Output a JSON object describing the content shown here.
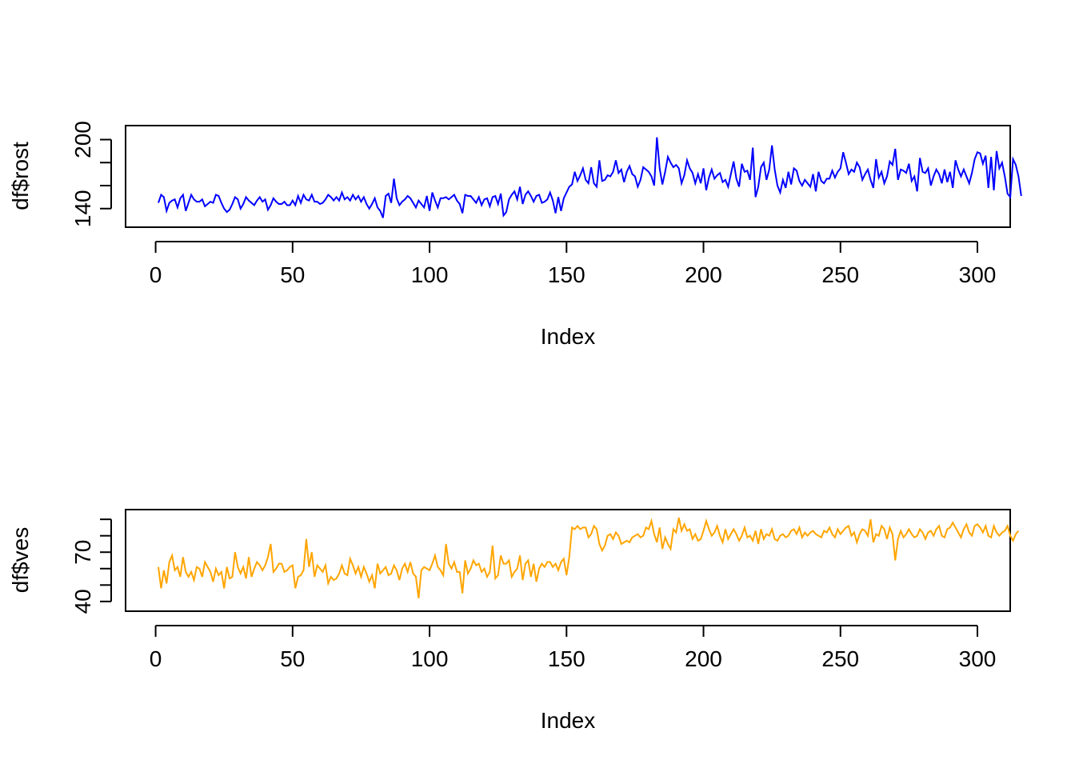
{
  "chart_data": [
    {
      "type": "line",
      "title": "",
      "xlabel": "Index",
      "ylabel": "df$rost",
      "color": "#0000FF",
      "xlim": [
        1,
        300
      ],
      "ylim": [
        128,
        208
      ],
      "x_ticks": [
        0,
        50,
        100,
        150,
        200,
        250,
        300
      ],
      "x_tick_labels": [
        "0",
        "50",
        "100",
        "150",
        "200",
        "250",
        "300"
      ],
      "y_ticks": [
        140,
        160,
        180,
        200
      ],
      "y_tick_labels": [
        "140",
        "",
        "",
        "200"
      ],
      "grid": false,
      "x": "1..300",
      "values": [
        145,
        152,
        150,
        138,
        145,
        147,
        148,
        141,
        149,
        152,
        138,
        145,
        152,
        148,
        146,
        146,
        148,
        142,
        144,
        146,
        145,
        152,
        151,
        145,
        140,
        137,
        139,
        144,
        150,
        148,
        140,
        144,
        150,
        147,
        145,
        143,
        147,
        150,
        146,
        148,
        139,
        143,
        149,
        146,
        144,
        144,
        146,
        143,
        143,
        147,
        143,
        151,
        145,
        152,
        148,
        147,
        152,
        146,
        146,
        144,
        145,
        148,
        152,
        150,
        147,
        150,
        147,
        154,
        148,
        150,
        147,
        152,
        148,
        151,
        146,
        150,
        144,
        140,
        144,
        149,
        141,
        138,
        132,
        151,
        153,
        145,
        166,
        149,
        143,
        146,
        148,
        151,
        149,
        145,
        141,
        147,
        144,
        141,
        151,
        138,
        154,
        147,
        141,
        149,
        149,
        150,
        148,
        150,
        152,
        147,
        144,
        136,
        152,
        151,
        151,
        148,
        145,
        150,
        143,
        148,
        149,
        142,
        150,
        151,
        144,
        153,
        134,
        137,
        148,
        152,
        155,
        148,
        159,
        144,
        152,
        155,
        151,
        146,
        151,
        152,
        145,
        146,
        148,
        154,
        147,
        136,
        150,
        138,
        149,
        154,
        159,
        161,
        172,
        164,
        169,
        175,
        165,
        162,
        176,
        162,
        159,
        182,
        164,
        165,
        169,
        168,
        172,
        182,
        171,
        174,
        163,
        172,
        177,
        170,
        168,
        159,
        165,
        176,
        174,
        172,
        168,
        160,
        202,
        175,
        161,
        172,
        185,
        180,
        176,
        178,
        175,
        162,
        169,
        182,
        175,
        171,
        162,
        170,
        162,
        175,
        156,
        167,
        174,
        166,
        169,
        171,
        163,
        165,
        159,
        170,
        181,
        166,
        159,
        179,
        172,
        173,
        165,
        193,
        150,
        159,
        176,
        180,
        165,
        174,
        195,
        174,
        160,
        154,
        165,
        158,
        172,
        161,
        175,
        173,
        164,
        160,
        165,
        162,
        159,
        170,
        155,
        172,
        164,
        162,
        166,
        166,
        173,
        167,
        172,
        175,
        189,
        180,
        170,
        174,
        172,
        180,
        176,
        165,
        170,
        174,
        165,
        158,
        183,
        167,
        172,
        162,
        168,
        181,
        178,
        192,
        165,
        174,
        173,
        171,
        179,
        164,
        168,
        155,
        184,
        172,
        171,
        175,
        160,
        168,
        174,
        170,
        162,
        174,
        163,
        172,
        158,
        182,
        174,
        168,
        174,
        168,
        162,
        171,
        183,
        189,
        188,
        179,
        186,
        158,
        185,
        156,
        190,
        175,
        180,
        168,
        153,
        150,
        183,
        178,
        168,
        151
      ],
      "series": [
        {
          "values": "values"
        }
      ]
    },
    {
      "type": "line",
      "title": "",
      "xlabel": "Index",
      "ylabel": "df$ves",
      "color": "#FFA500",
      "xlim": [
        1,
        300
      ],
      "ylim": [
        37,
        93
      ],
      "x_ticks": [
        0,
        50,
        100,
        150,
        200,
        250,
        300
      ],
      "x_tick_labels": [
        "0",
        "50",
        "100",
        "150",
        "200",
        "250",
        "300"
      ],
      "y_ticks": [
        40,
        50,
        60,
        70,
        80,
        90
      ],
      "y_tick_labels": [
        "40",
        "",
        "",
        "70",
        "",
        ""
      ],
      "grid": false,
      "x": "1..300",
      "values": [
        61,
        48,
        59,
        51,
        64,
        68,
        59,
        61,
        55,
        67,
        58,
        55,
        58,
        53,
        61,
        60,
        55,
        64,
        61,
        58,
        52,
        60,
        56,
        58,
        48,
        61,
        54,
        55,
        70,
        61,
        57,
        61,
        54,
        67,
        55,
        60,
        64,
        62,
        59,
        62,
        67,
        75,
        58,
        60,
        63,
        63,
        58,
        59,
        61,
        62,
        48,
        55,
        56,
        59,
        78,
        61,
        70,
        55,
        62,
        60,
        58,
        62,
        51,
        55,
        53,
        54,
        57,
        62,
        57,
        56,
        66,
        62,
        57,
        61,
        55,
        61,
        57,
        52,
        56,
        48,
        63,
        57,
        59,
        61,
        56,
        57,
        62,
        59,
        53,
        60,
        63,
        58,
        64,
        57,
        55,
        42,
        59,
        61,
        60,
        59,
        63,
        68,
        61,
        59,
        56,
        75,
        63,
        60,
        64,
        58,
        58,
        45,
        65,
        57,
        60,
        65,
        62,
        63,
        58,
        60,
        55,
        58,
        74,
        54,
        56,
        68,
        63,
        63,
        65,
        55,
        58,
        60,
        68,
        53,
        63,
        65,
        55,
        63,
        52,
        60,
        63,
        61,
        64,
        64,
        61,
        63,
        59,
        64,
        66,
        56,
        67,
        85,
        84,
        86,
        84,
        85,
        85,
        79,
        81,
        86,
        84,
        75,
        71,
        74,
        80,
        81,
        78,
        82,
        80,
        75,
        76,
        77,
        76,
        79,
        80,
        81,
        79,
        80,
        85,
        84,
        89,
        81,
        76,
        85,
        72,
        79,
        75,
        72,
        84,
        82,
        91,
        83,
        87,
        83,
        84,
        78,
        81,
        77,
        78,
        83,
        89,
        84,
        80,
        82,
        86,
        80,
        76,
        84,
        78,
        81,
        84,
        81,
        77,
        80,
        85,
        79,
        80,
        77,
        83,
        75,
        84,
        78,
        81,
        80,
        84,
        78,
        77,
        80,
        81,
        79,
        80,
        83,
        84,
        81,
        85,
        79,
        82,
        80,
        82,
        83,
        81,
        80,
        79,
        83,
        82,
        85,
        81,
        79,
        84,
        81,
        83,
        85,
        86,
        80,
        82,
        76,
        81,
        84,
        83,
        80,
        90,
        76,
        81,
        80,
        86,
        84,
        78,
        85,
        81,
        65,
        78,
        83,
        79,
        81,
        84,
        81,
        79,
        80,
        84,
        82,
        78,
        82,
        83,
        80,
        84,
        86,
        80,
        79,
        84,
        85,
        88,
        85,
        82,
        79,
        84,
        87,
        82,
        80,
        86,
        87,
        85,
        82,
        86,
        80,
        79,
        86,
        82,
        80,
        82,
        83,
        86,
        80,
        77,
        81,
        83
      ],
      "series": [
        {
          "values": "values"
        }
      ]
    }
  ]
}
